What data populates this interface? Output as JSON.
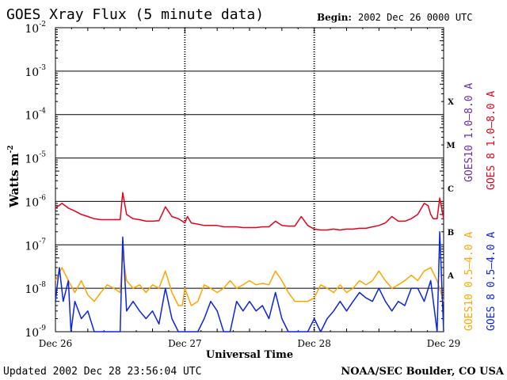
{
  "header": {
    "title": "GOES Xray Flux (5 minute data)",
    "begin_label": "Begin:",
    "begin_value": "2002 Dec 26 0000 UTC"
  },
  "footer": {
    "updated": "Updated 2002 Dec 28 23:56:04 UTC",
    "source": "NOAA/SEC Boulder, CO USA"
  },
  "chart_data": {
    "type": "line",
    "title": "GOES Xray Flux (5 minute data)",
    "xlabel": "Universal Time",
    "ylabel": "Watts m",
    "ylabel_sup": "-2",
    "y_scale": "log",
    "ylim": [
      1e-09,
      0.01
    ],
    "xlim_days": [
      0,
      3
    ],
    "x_ticks": [
      "Dec 26",
      "Dec 27",
      "Dec 28",
      "Dec 29"
    ],
    "y_ticks": [
      {
        "base": "10",
        "exp": "-2",
        "value": 0.01
      },
      {
        "base": "10",
        "exp": "-3",
        "value": 0.001
      },
      {
        "base": "10",
        "exp": "-4",
        "value": 0.0001
      },
      {
        "base": "10",
        "exp": "-5",
        "value": 1e-05
      },
      {
        "base": "10",
        "exp": "-6",
        "value": 1e-06
      },
      {
        "base": "10",
        "exp": "-7",
        "value": 1e-07
      },
      {
        "base": "10",
        "exp": "-8",
        "value": 1e-08
      },
      {
        "base": "10",
        "exp": "-9",
        "value": 1e-09
      }
    ],
    "flare_classes": [
      {
        "label": "X",
        "value": 0.0002
      },
      {
        "label": "M",
        "value": 2e-05
      },
      {
        "label": "C",
        "value": 2e-06
      },
      {
        "label": "B",
        "value": 2e-07
      },
      {
        "label": "A",
        "value": 2e-08
      }
    ],
    "grid": true,
    "colors": {
      "goes10_long": "#6a2aa8",
      "goes8_long": "#e8001a",
      "goes10_short": "#ffa500",
      "goes8_short": "#0a24e0"
    },
    "legend": {
      "placement": "right",
      "entries": [
        {
          "label": "GOES10 1.0–8.0 A",
          "color": "#6a2aa8"
        },
        {
          "label": "GOES 8 1.0–8.0 A",
          "color": "#e8001a"
        },
        {
          "label": "GOES10 0.5–4.0 A",
          "color": "#ffa500"
        },
        {
          "label": "GOES 8 0.5–4.0 A",
          "color": "#0a24e0"
        }
      ]
    },
    "series": [
      {
        "name": "GOES 8 1.0–8.0 A",
        "color": "#e8001a",
        "x_days": [
          0,
          0.05,
          0.1,
          0.15,
          0.2,
          0.25,
          0.3,
          0.35,
          0.4,
          0.45,
          0.5,
          0.52,
          0.55,
          0.6,
          0.65,
          0.7,
          0.75,
          0.8,
          0.85,
          0.9,
          0.95,
          0.98,
          1.0,
          1.02,
          1.05,
          1.1,
          1.15,
          1.2,
          1.25,
          1.3,
          1.35,
          1.4,
          1.45,
          1.5,
          1.55,
          1.6,
          1.65,
          1.7,
          1.75,
          1.8,
          1.85,
          1.9,
          1.95,
          2.0,
          2.05,
          2.1,
          2.15,
          2.2,
          2.25,
          2.3,
          2.35,
          2.4,
          2.45,
          2.5,
          2.55,
          2.6,
          2.65,
          2.7,
          2.75,
          2.8,
          2.85,
          2.88,
          2.9,
          2.92,
          2.95,
          2.97,
          3.0
        ],
        "y": [
          7e-07,
          9e-07,
          7e-07,
          6e-07,
          5e-07,
          4.5e-07,
          4e-07,
          3.8e-07,
          3.8e-07,
          3.8e-07,
          3.8e-07,
          1.6e-06,
          5e-07,
          4e-07,
          3.8e-07,
          3.5e-07,
          3.5e-07,
          3.6e-07,
          7.5e-07,
          4.5e-07,
          4e-07,
          3.5e-07,
          3.2e-07,
          4.5e-07,
          3.2e-07,
          3e-07,
          2.8e-07,
          2.8e-07,
          2.8e-07,
          2.6e-07,
          2.6e-07,
          2.6e-07,
          2.5e-07,
          2.5e-07,
          2.5e-07,
          2.6e-07,
          2.6e-07,
          3.5e-07,
          2.8e-07,
          2.7e-07,
          2.7e-07,
          4.5e-07,
          2.8e-07,
          2.3e-07,
          2.2e-07,
          2.2e-07,
          2.3e-07,
          2.2e-07,
          2.3e-07,
          2.3e-07,
          2.4e-07,
          2.4e-07,
          2.6e-07,
          2.8e-07,
          3.2e-07,
          4.5e-07,
          3.5e-07,
          3.5e-07,
          4e-07,
          5e-07,
          9e-07,
          8e-07,
          5e-07,
          4e-07,
          4e-07,
          1.2e-06,
          4e-07
        ]
      },
      {
        "name": "GOES10 0.5–4.0 A",
        "color": "#ffa500",
        "x_days": [
          0,
          0.05,
          0.1,
          0.15,
          0.2,
          0.25,
          0.3,
          0.35,
          0.4,
          0.45,
          0.5,
          0.52,
          0.55,
          0.6,
          0.65,
          0.7,
          0.75,
          0.8,
          0.85,
          0.9,
          0.95,
          0.98,
          1.0,
          1.05,
          1.1,
          1.15,
          1.2,
          1.25,
          1.3,
          1.35,
          1.4,
          1.45,
          1.5,
          1.55,
          1.6,
          1.65,
          1.7,
          1.75,
          1.8,
          1.85,
          1.9,
          1.95,
          2.0,
          2.05,
          2.1,
          2.15,
          2.2,
          2.25,
          2.3,
          2.35,
          2.4,
          2.45,
          2.5,
          2.55,
          2.6,
          2.65,
          2.7,
          2.75,
          2.8,
          2.85,
          2.9,
          2.95,
          3.0
        ],
        "y": [
          1.5e-08,
          3e-08,
          1.5e-08,
          8e-09,
          1.5e-08,
          7e-09,
          5e-09,
          8e-09,
          1.2e-08,
          1e-08,
          8e-09,
          6e-08,
          1.5e-08,
          1e-08,
          1.2e-08,
          8e-09,
          1.2e-08,
          1e-08,
          2.5e-08,
          8e-09,
          4e-09,
          4e-09,
          1e-08,
          4e-09,
          5e-09,
          1.2e-08,
          1e-08,
          8e-09,
          1e-08,
          1.5e-08,
          1e-08,
          1.2e-08,
          1.5e-08,
          1.2e-08,
          1.3e-08,
          1.2e-08,
          2.5e-08,
          1.5e-08,
          8e-09,
          5e-09,
          5e-09,
          5e-09,
          6e-09,
          1.2e-08,
          1e-08,
          8e-09,
          1.2e-08,
          8e-09,
          1e-08,
          1.5e-08,
          1.2e-08,
          1.5e-08,
          2.5e-08,
          1.5e-08,
          1e-08,
          1.2e-08,
          1.5e-08,
          2e-08,
          1.5e-08,
          2.5e-08,
          3e-08,
          1.5e-08,
          5e-09
        ]
      },
      {
        "name": "GOES 8 0.5–4.0 A",
        "color": "#0a24e0",
        "x_days": [
          0,
          0.03,
          0.06,
          0.1,
          0.12,
          0.15,
          0.2,
          0.25,
          0.3,
          0.35,
          0.4,
          0.45,
          0.5,
          0.52,
          0.55,
          0.6,
          0.65,
          0.7,
          0.75,
          0.8,
          0.85,
          0.9,
          0.95,
          0.98,
          1.0,
          1.05,
          1.1,
          1.15,
          1.2,
          1.25,
          1.3,
          1.35,
          1.4,
          1.45,
          1.5,
          1.55,
          1.6,
          1.65,
          1.7,
          1.75,
          1.8,
          1.85,
          1.9,
          1.95,
          2.0,
          2.05,
          2.1,
          2.15,
          2.2,
          2.25,
          2.3,
          2.35,
          2.4,
          2.45,
          2.5,
          2.55,
          2.6,
          2.65,
          2.7,
          2.75,
          2.8,
          2.85,
          2.9,
          2.95,
          2.97,
          3.0
        ],
        "y": [
          5e-09,
          3e-08,
          5e-09,
          1.5e-08,
          1e-09,
          5e-09,
          2e-09,
          3e-09,
          1e-09,
          1e-09,
          1e-09,
          1e-09,
          1e-09,
          1.5e-07,
          3e-09,
          5e-09,
          3e-09,
          2e-09,
          3e-09,
          1.5e-09,
          1e-08,
          2e-09,
          1e-09,
          1e-09,
          1e-09,
          1e-09,
          1e-09,
          2e-09,
          5e-09,
          3e-09,
          1e-09,
          1e-09,
          5e-09,
          3e-09,
          5e-09,
          3e-09,
          4e-09,
          2e-09,
          8e-09,
          2e-09,
          1e-09,
          1e-09,
          1e-09,
          1e-09,
          2e-09,
          1e-09,
          2e-09,
          3e-09,
          5e-09,
          3e-09,
          5e-09,
          8e-09,
          6e-09,
          5e-09,
          1e-08,
          5e-09,
          3e-09,
          5e-09,
          4e-09,
          1e-08,
          1e-08,
          5e-09,
          1.5e-08,
          1e-09,
          2e-07,
          1e-09
        ]
      }
    ]
  }
}
